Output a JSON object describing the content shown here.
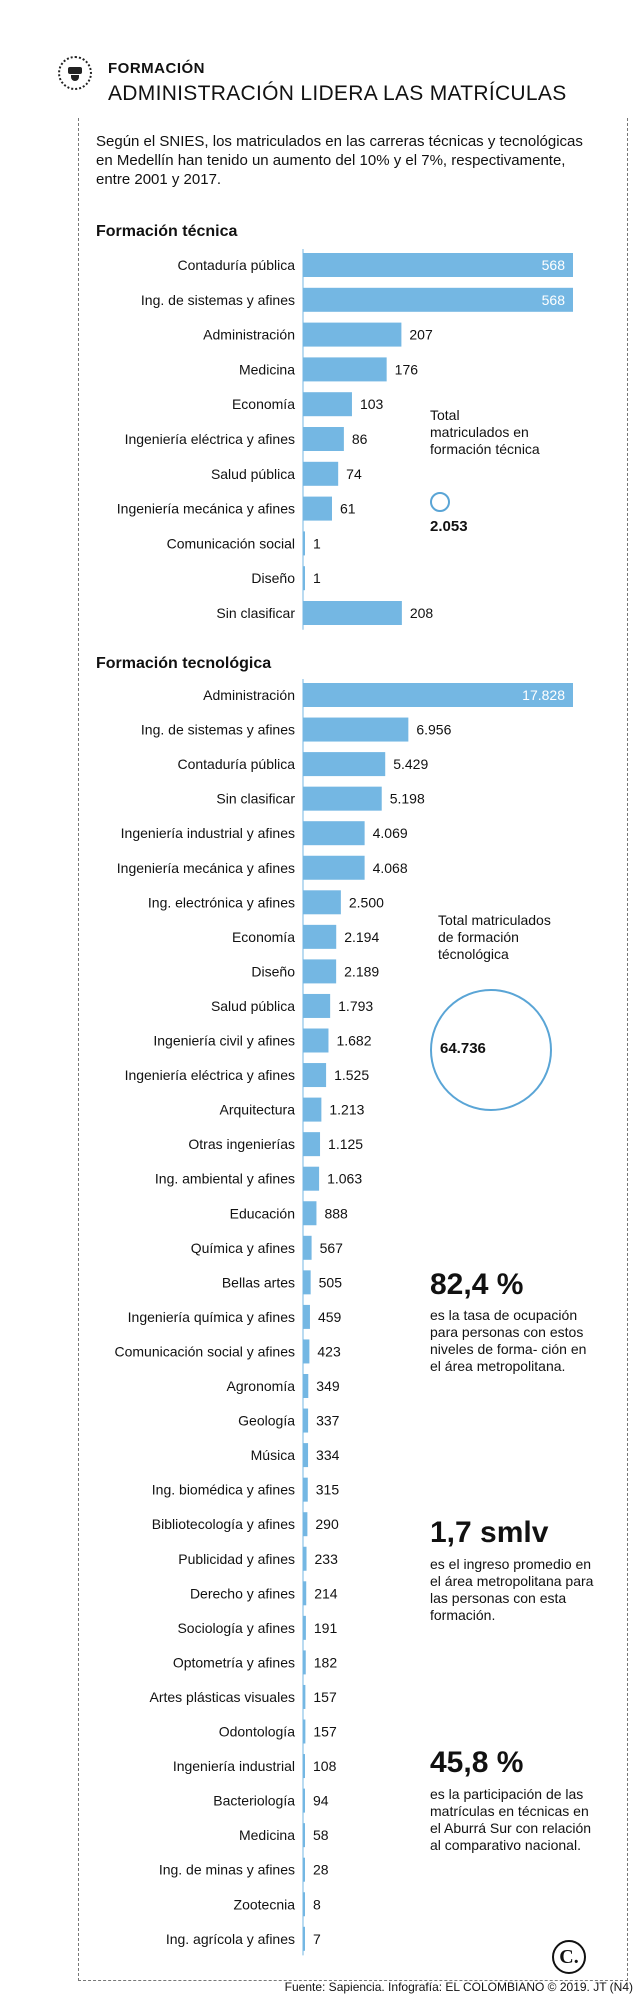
{
  "header": {
    "kicker": "FORMACIÓN",
    "title": "ADMINISTRACIÓN LIDERA LAS MATRÍCULAS",
    "intro": "Según el SNIES, los matriculados en las carreras técnicas y tecnológicas en Medellín han tenido un aumento del 10% y el 7%, respectivamente, entre 2001 y 2017.",
    "icon": "graduation-cap-icon"
  },
  "colors": {
    "bar": "#74b7e3",
    "circle": "#5aa5d6"
  },
  "chart_data": [
    {
      "type": "bar",
      "orientation": "horizontal",
      "title": "Formación técnica",
      "categories": [
        "Contaduría pública",
        "Ing. de sistemas y afines",
        "Administración",
        "Medicina",
        "Economía",
        "Ingeniería eléctrica y afines",
        "Salud pública",
        "Ingeniería mecánica y afines",
        "Comunicación social",
        "Diseño",
        "Sin clasificar"
      ],
      "values": [
        568,
        568,
        207,
        176,
        103,
        86,
        74,
        61,
        1,
        1,
        208
      ],
      "labels": [
        "568",
        "568",
        "207",
        "176",
        "103",
        "86",
        "74",
        "61",
        "1",
        "1",
        "208"
      ]
    },
    {
      "type": "bar",
      "orientation": "horizontal",
      "title": "Formación tecnológica",
      "categories": [
        "Administración",
        "Ing. de sistemas y afines",
        "Contaduría pública",
        "Sin clasificar",
        "Ingeniería industrial y afines",
        "Ingeniería mecánica y afines",
        "Ing. electrónica y afines",
        "Economía",
        "Diseño",
        "Salud pública",
        "Ingeniería civil y afines",
        "Ingeniería eléctrica y afines",
        "Arquitectura",
        "Otras ingenierías",
        "Ing. ambiental  y afines",
        "Educación",
        "Química y afines",
        "Bellas artes",
        "Ingeniería química y afines",
        "Comunicación social y afines",
        "Agronomía",
        "Geología",
        "Música",
        "Ing. biomédica y afines",
        "Bibliotecología y afines",
        "Publicidad y afines",
        "Derecho y afines",
        "Sociología y afines",
        "Optometría y afines",
        "Artes plásticas visuales",
        "Odontología",
        "Ingeniería industrial",
        "Bacteriología",
        "Medicina",
        "Ing. de minas y afines",
        "Zootecnia",
        "Ing. agrícola  y afines"
      ],
      "values": [
        17828,
        6956,
        5429,
        5198,
        4069,
        4068,
        2500,
        2194,
        2189,
        1793,
        1682,
        1525,
        1213,
        1125,
        1063,
        888,
        567,
        505,
        459,
        423,
        349,
        337,
        334,
        315,
        290,
        233,
        214,
        191,
        182,
        157,
        157,
        108,
        94,
        58,
        28,
        8,
        7
      ],
      "labels": [
        "17.828",
        "6.956",
        "5.429",
        "5.198",
        "4.069",
        "4.068",
        "2.500",
        "2.194",
        "2.189",
        "1.793",
        "1.682",
        "1.525",
        "1.213",
        "1.125",
        "1.063",
        "888",
        "567",
        "505",
        "459",
        "423",
        "349",
        "337",
        "334",
        "315",
        "290",
        "233",
        "214",
        "191",
        "182",
        "157",
        "157",
        "108",
        "94",
        "58",
        "28",
        "8",
        "7"
      ]
    }
  ],
  "totals": {
    "tecnica": {
      "label": "Total matriculados en formación técnica",
      "value": "2.053"
    },
    "tecnologica": {
      "label": "Total matriculados de formación técnológica",
      "value": "64.736"
    }
  },
  "facts": [
    {
      "value": "82,4 %",
      "text": "es la tasa de ocupación para personas con estos niveles de forma- ción en el área metropolitana."
    },
    {
      "value": "1,7 smlv",
      "text": "es el ingreso promedio en el área metropolitana para las personas con esta formación."
    },
    {
      "value": "45,8 %",
      "text": "es la participación de las matrículas en técnicas en el Aburrá Sur con relación al comparativo nacional."
    }
  ],
  "footer": {
    "source": "Fuente: Sapiencia. Infografía: EL COLOMBIANO © 2019. JT (N4)",
    "logo": "C."
  }
}
